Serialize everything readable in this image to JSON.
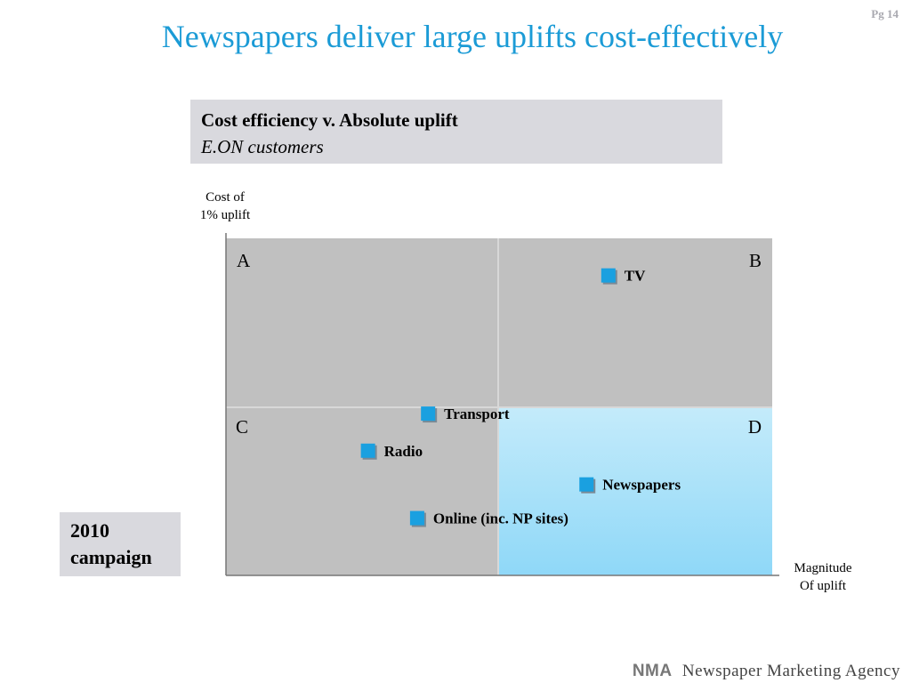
{
  "page": {
    "number": "Pg 14",
    "title": "Newspapers deliver large uplifts cost-effectively"
  },
  "subtitle": {
    "main": "Cost efficiency v. Absolute uplift",
    "sub": "E.ON customers"
  },
  "campaign": {
    "label": "2010\ncampaign"
  },
  "footer": {
    "logo": "NMA",
    "agency": "Newspaper Marketing Agency"
  },
  "colors": {
    "title": "#1b9bd6",
    "quadrant_grey": "#c0c0c0",
    "quadrant_highlight": "#a8e0f8",
    "marker": "#1aa0e0",
    "label_box": "#d9d9de"
  },
  "chart_data": {
    "type": "scatter",
    "ylabel": "Cost of\n1% uplift",
    "xlabel": "Magnitude\nOf uplift",
    "xlim": [
      0,
      1
    ],
    "ylim": [
      0,
      1
    ],
    "quadrants": [
      {
        "label": "A",
        "position": "top-left",
        "highlight": false
      },
      {
        "label": "B",
        "position": "top-right",
        "highlight": false
      },
      {
        "label": "C",
        "position": "bottom-left",
        "highlight": false
      },
      {
        "label": "D",
        "position": "bottom-right",
        "highlight": true
      }
    ],
    "points": [
      {
        "name": "TV",
        "x": 0.7,
        "y": 0.89
      },
      {
        "name": "Transport",
        "x": 0.37,
        "y": 0.48
      },
      {
        "name": "Radio",
        "x": 0.26,
        "y": 0.37
      },
      {
        "name": "Newspapers",
        "x": 0.66,
        "y": 0.27
      },
      {
        "name": "Online (inc. NP sites)",
        "x": 0.35,
        "y": 0.17
      }
    ],
    "grid": false,
    "legend": "none"
  }
}
